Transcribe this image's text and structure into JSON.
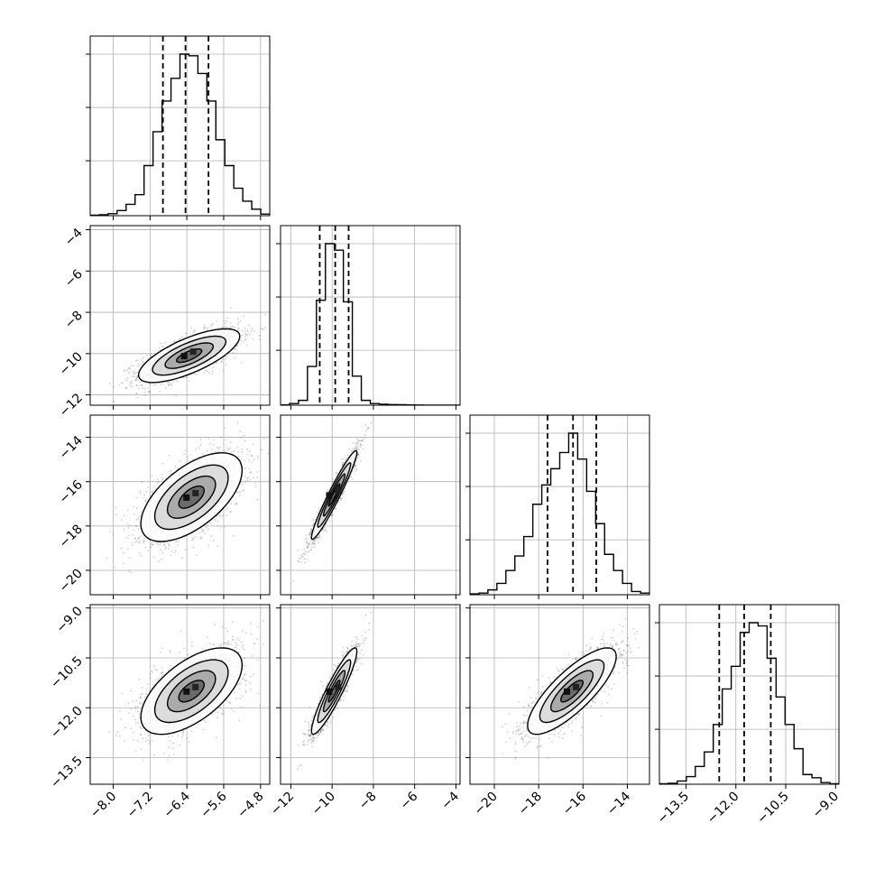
{
  "chart_data": {
    "type": "corner",
    "grid": true,
    "parameters": [
      {
        "range": [
          -8.5,
          -4.6
        ],
        "ticks": [
          -8.0,
          -7.2,
          -6.4,
          -5.6,
          -4.8
        ],
        "tick_labels": [
          "−8.0",
          "−7.2",
          "−6.4",
          "−5.6",
          "−4.8"
        ],
        "quantiles": [
          -6.92,
          -6.43,
          -5.93
        ]
      },
      {
        "range": [
          -12.5,
          -3.8
        ],
        "ticks": [
          -12,
          -10,
          -8,
          -6,
          -4
        ],
        "tick_labels": [
          "−12",
          "−10",
          "−8",
          "−6",
          "−4"
        ],
        "quantiles": [
          -10.6,
          -9.85,
          -9.2
        ]
      },
      {
        "range": [
          -21.1,
          -13.0
        ],
        "ticks": [
          -20,
          -18,
          -16,
          -14
        ],
        "tick_labels": [
          "−20",
          "−18",
          "−16",
          "−14"
        ],
        "quantiles": [
          -17.6,
          -16.45,
          -15.4
        ]
      },
      {
        "range": [
          -14.3,
          -8.9
        ],
        "ticks": [
          -13.5,
          -12.0,
          -10.5,
          -9.0
        ],
        "tick_labels": [
          "−13.5",
          "−12.0",
          "−10.5",
          "−9.0"
        ],
        "quantiles": [
          -12.5,
          -11.75,
          -10.95
        ]
      }
    ],
    "histograms": [
      {
        "param": 0,
        "bins": [
          -8.5,
          -4.6
        ],
        "counts": [
          0.3,
          0.6,
          1.2,
          3.2,
          7,
          13,
          31,
          52,
          71,
          85,
          100,
          99,
          88,
          71,
          47,
          31,
          17,
          9,
          4,
          1
        ]
      },
      {
        "param": 1,
        "bins": [
          -12.5,
          -3.8
        ],
        "counts": [
          0.2,
          1,
          3,
          24,
          65,
          100,
          96,
          64,
          18,
          3,
          1,
          0.6,
          0.4,
          0.3,
          0.2,
          0.1,
          0,
          0,
          0,
          0
        ]
      },
      {
        "param": 2,
        "bins": [
          -21.1,
          -13.0
        ],
        "counts": [
          0.5,
          1,
          3,
          7,
          15,
          24,
          36,
          56,
          68,
          78,
          88,
          100,
          84,
          64,
          44,
          25,
          15,
          7,
          2,
          1
        ]
      },
      {
        "param": 3,
        "bins": [
          -14.3,
          -8.9
        ],
        "counts": [
          0.3,
          0.6,
          2,
          4.7,
          11,
          20,
          37,
          59,
          73,
          94,
          100,
          98,
          78,
          54,
          37,
          22,
          6,
          4,
          1,
          0.3
        ]
      }
    ],
    "pairs": [
      {
        "x": 0,
        "y": 1,
        "mean": [
          -6.35,
          -10.1
        ],
        "sd": [
          0.55,
          0.65
        ],
        "corr": 0.72
      },
      {
        "x": 0,
        "y": 2,
        "mean": [
          -6.3,
          -16.7
        ],
        "sd": [
          0.55,
          1.0
        ],
        "corr": 0.6
      },
      {
        "x": 1,
        "y": 2,
        "mean": [
          -9.9,
          -16.6
        ],
        "sd": [
          0.55,
          1.0
        ],
        "corr": 0.96
      },
      {
        "x": 0,
        "y": 3,
        "mean": [
          -6.3,
          -11.5
        ],
        "sd": [
          0.55,
          0.65
        ],
        "corr": 0.6
      },
      {
        "x": 1,
        "y": 3,
        "mean": [
          -9.9,
          -11.5
        ],
        "sd": [
          0.55,
          0.65
        ],
        "corr": 0.92
      },
      {
        "x": 2,
        "y": 3,
        "mean": [
          -16.5,
          -11.5
        ],
        "sd": [
          1.0,
          0.65
        ],
        "corr": 0.8
      }
    ]
  }
}
